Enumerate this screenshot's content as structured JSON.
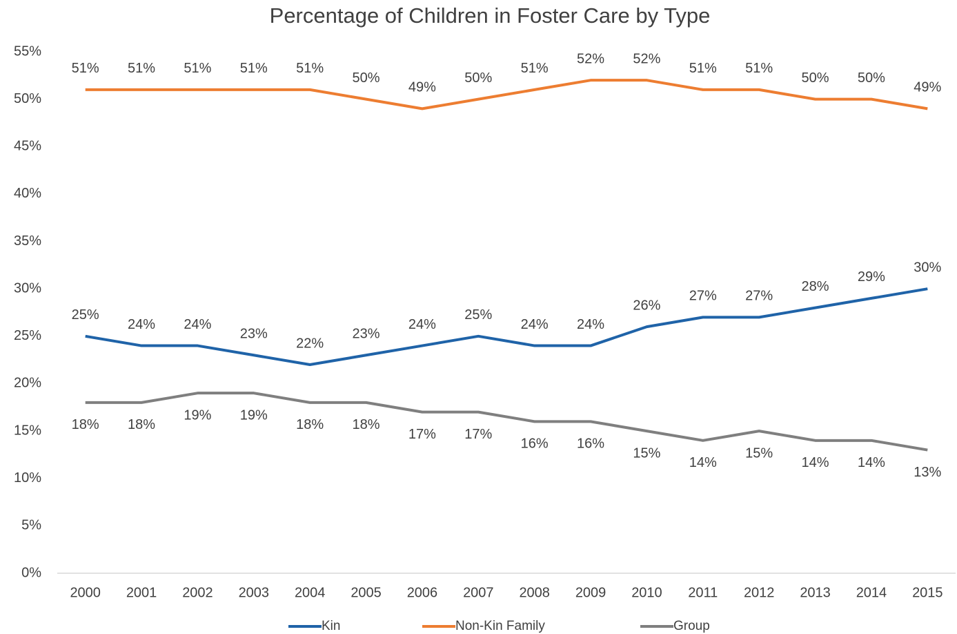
{
  "chart_data": {
    "type": "line",
    "title": "Percentage of Children in Foster Care by Type",
    "categories": [
      "2000",
      "2001",
      "2002",
      "2003",
      "2004",
      "2005",
      "2006",
      "2007",
      "2008",
      "2009",
      "2010",
      "2011",
      "2012",
      "2013",
      "2014",
      "2015"
    ],
    "series": [
      {
        "name": "Kin",
        "color": "#1f63a8",
        "values": [
          25,
          24,
          24,
          23,
          22,
          23,
          24,
          25,
          24,
          24,
          26,
          27,
          27,
          28,
          29,
          30
        ],
        "value_labels": [
          "25%",
          "24%",
          "24%",
          "23%",
          "22%",
          "23%",
          "24%",
          "25%",
          "24%",
          "24%",
          "26%",
          "27%",
          "27%",
          "28%",
          "29%",
          "30%"
        ]
      },
      {
        "name": "Non-Kin Family",
        "color": "#ed7d31",
        "values": [
          51,
          51,
          51,
          51,
          51,
          50,
          49,
          50,
          51,
          52,
          52,
          51,
          51,
          50,
          50,
          49
        ],
        "value_labels": [
          "51%",
          "51%",
          "51%",
          "51%",
          "51%",
          "50%",
          "49%",
          "50%",
          "51%",
          "52%",
          "52%",
          "51%",
          "51%",
          "50%",
          "50%",
          "49%"
        ]
      },
      {
        "name": "Group",
        "color": "#7f7f7f",
        "values": [
          18,
          18,
          19,
          19,
          18,
          18,
          17,
          17,
          16,
          16,
          15,
          14,
          15,
          14,
          14,
          13
        ],
        "value_labels": [
          "18%",
          "18%",
          "19%",
          "19%",
          "18%",
          "18%",
          "17%",
          "17%",
          "16%",
          "16%",
          "15%",
          "14%",
          "15%",
          "14%",
          "14%",
          "13%"
        ]
      }
    ],
    "ylim": [
      0,
      55
    ],
    "yticks": [
      {
        "value": 0,
        "label": "0%"
      },
      {
        "value": 5,
        "label": "5%"
      },
      {
        "value": 10,
        "label": "10%"
      },
      {
        "value": 15,
        "label": "15%"
      },
      {
        "value": 20,
        "label": "20%"
      },
      {
        "value": 25,
        "label": "25%"
      },
      {
        "value": 30,
        "label": "30%"
      },
      {
        "value": 35,
        "label": "35%"
      },
      {
        "value": 40,
        "label": "40%"
      },
      {
        "value": 45,
        "label": "45%"
      },
      {
        "value": 50,
        "label": "50%"
      },
      {
        "value": 55,
        "label": "55%"
      }
    ],
    "grid": false,
    "legend": "bottom"
  }
}
